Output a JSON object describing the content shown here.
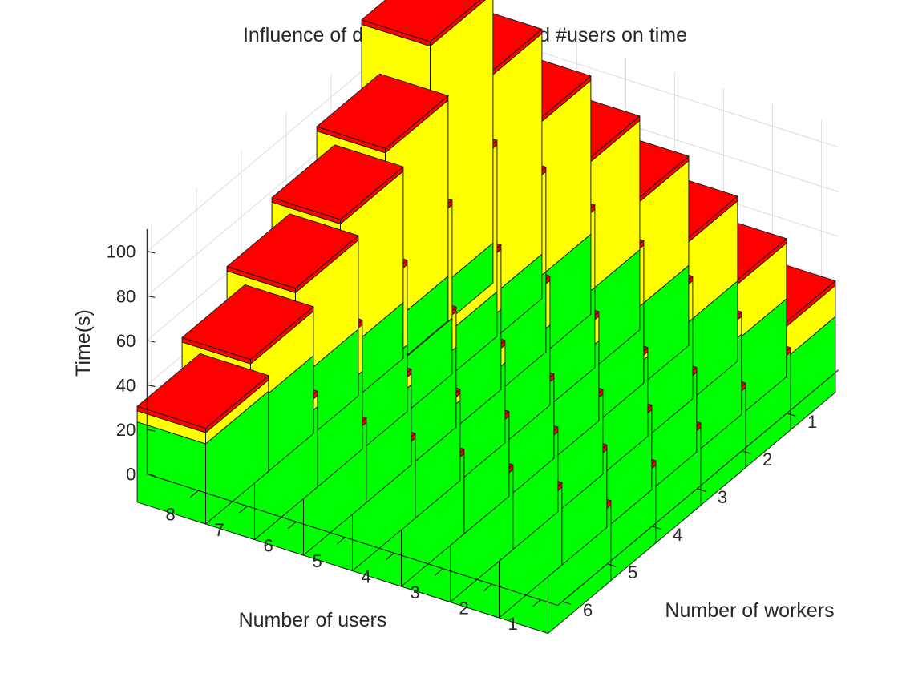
{
  "chart_data": {
    "type": "bar3d-stacked",
    "title": "Influence of different #workers and #users on time",
    "xlabel": "Number of users",
    "ylabel": "Number of workers",
    "zlabel": "Time(s)",
    "users": [
      1,
      2,
      3,
      4,
      5,
      6,
      7,
      8
    ],
    "workers": [
      1,
      2,
      3,
      4,
      5,
      6
    ],
    "zlim": [
      0,
      110
    ],
    "zticks": [
      0,
      20,
      40,
      60,
      80,
      100
    ],
    "grid": true,
    "colors": {
      "base": "#00ff00",
      "mid": "#ffff00",
      "top": "#ff0000"
    },
    "cap_value": 2,
    "series": [
      {
        "name": "",
        "color": "#00ff00",
        "note_rows_are_users_1_to_8_cols_are_workers_1_to_6": "",
        "values": [
          [
            34,
            35,
            36,
            35,
            35,
            34
          ],
          [
            35,
            36,
            36,
            36,
            35,
            35
          ],
          [
            36,
            36,
            36,
            36,
            36,
            36
          ],
          [
            36,
            36,
            36,
            36,
            36,
            36
          ],
          [
            36,
            36,
            36,
            36,
            36,
            36
          ],
          [
            36,
            36,
            36,
            36,
            36,
            36
          ],
          [
            20,
            20,
            25,
            30,
            35,
            36
          ],
          [
            18,
            20,
            25,
            30,
            35,
            36
          ]
        ]
      },
      {
        "name": "",
        "color": "#ffff00",
        "values": [
          [
            14,
            0,
            0,
            0,
            0,
            0
          ],
          [
            25,
            8,
            0,
            0,
            0,
            0
          ],
          [
            36,
            17,
            2,
            0,
            0,
            0
          ],
          [
            47,
            26,
            11,
            0,
            0,
            0
          ],
          [
            58,
            35,
            20,
            8,
            3,
            0
          ],
          [
            69,
            45,
            27,
            16,
            5,
            0
          ],
          [
            99,
            66,
            51,
            36,
            21,
            5
          ],
          [
            112,
            79,
            59,
            40,
            20,
            5
          ]
        ]
      }
    ]
  }
}
